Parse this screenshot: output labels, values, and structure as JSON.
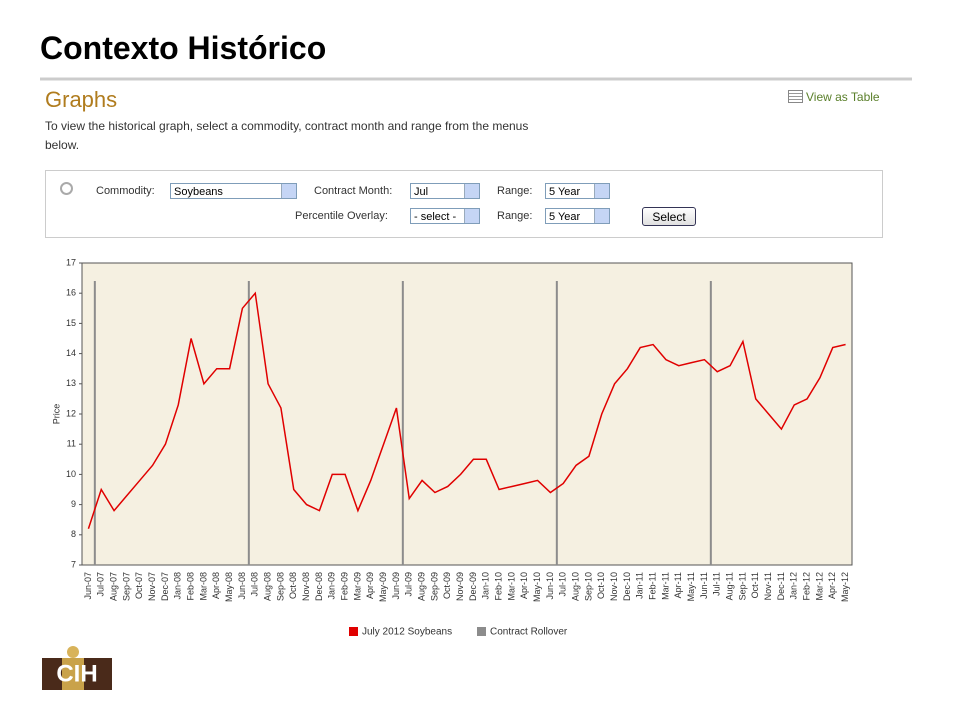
{
  "page_title": "Contexto Histórico",
  "panel": {
    "heading": "Graphs",
    "view_link": "View as Table",
    "description": "To view the historical graph, select a commodity, contract month and range from the menus below."
  },
  "form": {
    "commodity_label": "Commodity:",
    "commodity_value": "Soybeans",
    "month_label": "Contract Month:",
    "month_value": "Jul",
    "range_label": "Range:",
    "range_value": "5 Year",
    "overlay_label": "Percentile Overlay:",
    "overlay_value": "- select -",
    "range2_label": "Range:",
    "range2_value": "5 Year",
    "button": "Select"
  },
  "chart_data": {
    "type": "line",
    "ylabel": "Price",
    "categories": [
      "Jun-07",
      "Jul-07",
      "Aug-07",
      "Sep-07",
      "Oct-07",
      "Nov-07",
      "Dec-07",
      "Jan-08",
      "Feb-08",
      "Mar-08",
      "Apr-08",
      "May-08",
      "Jun-08",
      "Jul-08",
      "Aug-08",
      "Sep-08",
      "Oct-08",
      "Nov-08",
      "Dec-08",
      "Jan-09",
      "Feb-09",
      "Mar-09",
      "Apr-09",
      "May-09",
      "Jun-09",
      "Jul-09",
      "Aug-09",
      "Sep-09",
      "Oct-09",
      "Nov-09",
      "Dec-09",
      "Jan-10",
      "Feb-10",
      "Mar-10",
      "Apr-10",
      "May-10",
      "Jun-10",
      "Jul-10",
      "Aug-10",
      "Sep-10",
      "Oct-10",
      "Nov-10",
      "Dec-10",
      "Jan-11",
      "Feb-11",
      "Mar-11",
      "Apr-11",
      "May-11",
      "Jun-11",
      "Jul-11",
      "Aug-11",
      "Sep-11",
      "Oct-11",
      "Nov-11",
      "Dec-11",
      "Jan-12",
      "Feb-12",
      "Mar-12",
      "Apr-12",
      "May-12"
    ],
    "series": [
      {
        "name": "July 2012 Soybeans",
        "color": "#e00000",
        "values": [
          8.2,
          9.5,
          8.8,
          9.3,
          9.8,
          10.3,
          11.0,
          12.3,
          14.5,
          13.0,
          13.5,
          13.5,
          15.5,
          16.0,
          13.0,
          12.2,
          9.5,
          9.0,
          8.8,
          10.0,
          10.0,
          8.8,
          9.8,
          11.0,
          12.2,
          9.2,
          9.8,
          9.4,
          9.6,
          10.0,
          10.5,
          10.5,
          9.5,
          9.6,
          9.7,
          9.8,
          9.4,
          9.7,
          10.3,
          10.6,
          12.0,
          13.0,
          13.5,
          14.2,
          14.3,
          13.8,
          13.6,
          13.7,
          13.8,
          13.4,
          13.6,
          14.4,
          12.5,
          12.0,
          11.5,
          12.3,
          12.5,
          13.2,
          14.2,
          14.3
        ]
      }
    ],
    "rollover": {
      "name": "Contract Rollover",
      "color": "#8c8c8c",
      "at": [
        "Jul-07",
        "Jul-08",
        "Jul-09",
        "Jul-10",
        "Jul-11"
      ]
    },
    "ylim": [
      7,
      17
    ],
    "yticks": [
      7,
      8,
      9,
      10,
      11,
      12,
      13,
      14,
      15,
      16,
      17
    ],
    "grid": false
  },
  "logo": "CIH"
}
